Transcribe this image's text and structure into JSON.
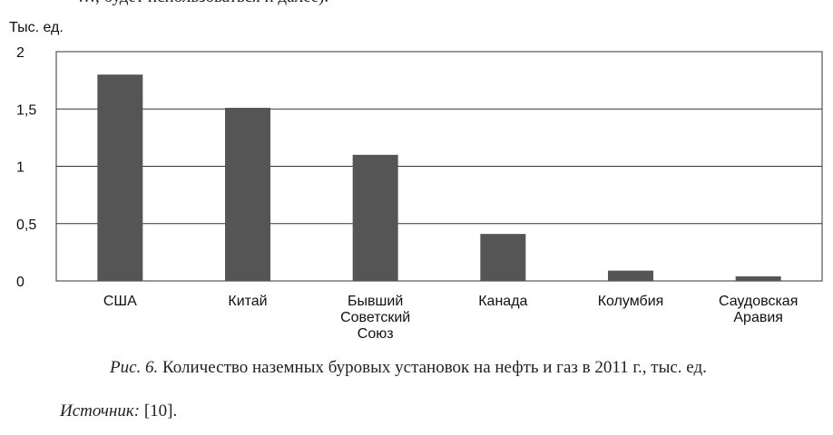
{
  "top_text": "…, будет использоваться и далее).",
  "chart_data": {
    "type": "bar",
    "unit_label": "Тыс. ед.",
    "categories": [
      [
        "США"
      ],
      [
        "Китай"
      ],
      [
        "Бывший",
        "Советский",
        "Союз"
      ],
      [
        "Канада"
      ],
      [
        "Колумбия"
      ],
      [
        "Саудовская",
        "Аравия"
      ]
    ],
    "values": [
      1.8,
      1.51,
      1.1,
      0.41,
      0.09,
      0.04
    ],
    "y_ticks": [
      "0",
      "0,5",
      "1",
      "1,5",
      "2"
    ],
    "y_tick_values": [
      0,
      0.5,
      1,
      1.5,
      2
    ],
    "ylim": [
      0,
      2
    ],
    "grid": true,
    "bar_color": "#555555"
  },
  "caption": {
    "figure_label": "Рис. 6.",
    "text": " Количество наземных буровых установок на нефть и газ в 2011 г., тыс. ед."
  },
  "source": {
    "label": "Источник:",
    "text": " [10]."
  }
}
